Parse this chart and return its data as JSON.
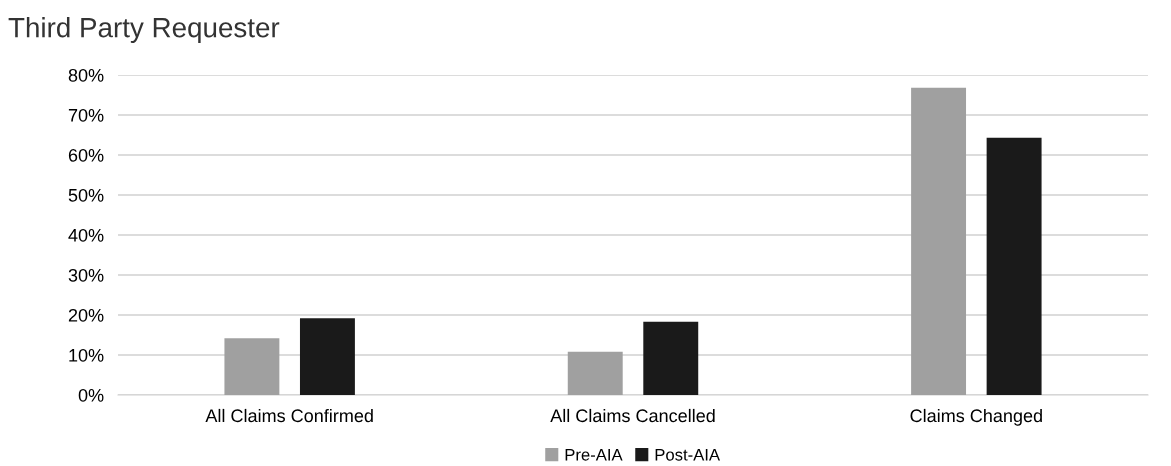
{
  "chart_data": {
    "type": "bar",
    "title": "Third Party Requester",
    "categories": [
      "All Claims Confirmed",
      "All Claims Cancelled",
      "Claims Changed"
    ],
    "series": [
      {
        "name": "Pre-AIA",
        "color": "#a0a0a0",
        "values": [
          14.2,
          10.8,
          76.8
        ]
      },
      {
        "name": "Post-AIA",
        "color": "#1a1a1a",
        "values": [
          19.2,
          18.3,
          64.3
        ]
      }
    ],
    "ylim": [
      0,
      80
    ],
    "yticks": [
      {
        "value": 0,
        "label": "0%"
      },
      {
        "value": 10,
        "label": "10%"
      },
      {
        "value": 20,
        "label": "20%"
      },
      {
        "value": 30,
        "label": "30%"
      },
      {
        "value": 40,
        "label": "40%"
      },
      {
        "value": 50,
        "label": "50%"
      },
      {
        "value": 60,
        "label": "60%"
      },
      {
        "value": 70,
        "label": "70%"
      },
      {
        "value": 80,
        "label": "80%"
      }
    ],
    "grid": "y",
    "legend": "bottom"
  }
}
